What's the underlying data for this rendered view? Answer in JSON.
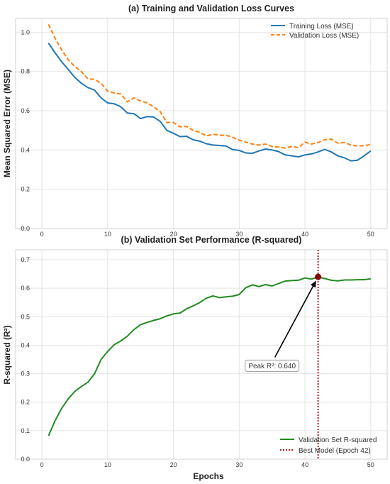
{
  "chart_data": [
    {
      "type": "line",
      "title": "(a) Training and Validation Loss Curves",
      "xlabel": "",
      "ylabel": "Mean Squared Error (MSE)",
      "xlim": [
        -4,
        52.5
      ],
      "ylim": [
        0,
        1.07
      ],
      "xticks": [
        0,
        10,
        20,
        30,
        40,
        50
      ],
      "yticks": [
        0.0,
        0.2,
        0.4,
        0.6,
        0.8,
        1.0
      ],
      "ytick_labels": [
        "0.0",
        "0.2",
        "0.4",
        "0.6",
        "0.8",
        "1.0"
      ],
      "grid": true,
      "legend_position": "top-right",
      "x": [
        1,
        2,
        3,
        4,
        5,
        6,
        7,
        8,
        9,
        10,
        11,
        12,
        13,
        14,
        15,
        16,
        17,
        18,
        19,
        20,
        21,
        22,
        23,
        24,
        25,
        26,
        27,
        28,
        29,
        30,
        31,
        32,
        33,
        34,
        35,
        36,
        37,
        38,
        39,
        40,
        41,
        42,
        43,
        44,
        45,
        46,
        47,
        48,
        49,
        50
      ],
      "series": [
        {
          "name": "Training Loss (MSE)",
          "color": "#1f77b4",
          "style": "solid",
          "values": [
            0.945,
            0.895,
            0.85,
            0.81,
            0.77,
            0.74,
            0.718,
            0.705,
            0.665,
            0.64,
            0.635,
            0.62,
            0.588,
            0.585,
            0.56,
            0.57,
            0.568,
            0.545,
            0.5,
            0.485,
            0.468,
            0.47,
            0.452,
            0.445,
            0.432,
            0.425,
            0.423,
            0.42,
            0.402,
            0.398,
            0.385,
            0.383,
            0.395,
            0.405,
            0.4,
            0.392,
            0.375,
            0.37,
            0.365,
            0.375,
            0.38,
            0.39,
            0.403,
            0.39,
            0.37,
            0.36,
            0.345,
            0.348,
            0.37,
            0.395
          ]
        },
        {
          "name": "Validation Loss (MSE)",
          "color": "#ff7f0e",
          "style": "dashed",
          "values": [
            1.04,
            0.97,
            0.91,
            0.86,
            0.825,
            0.8,
            0.762,
            0.76,
            0.74,
            0.7,
            0.69,
            0.685,
            0.645,
            0.665,
            0.65,
            0.64,
            0.62,
            0.595,
            0.54,
            0.54,
            0.518,
            0.52,
            0.5,
            0.49,
            0.472,
            0.48,
            0.475,
            0.475,
            0.465,
            0.45,
            0.44,
            0.43,
            0.425,
            0.43,
            0.418,
            0.415,
            0.41,
            0.418,
            0.412,
            0.44,
            0.43,
            0.438,
            0.452,
            0.455,
            0.435,
            0.438,
            0.425,
            0.42,
            0.422,
            0.428
          ]
        }
      ]
    },
    {
      "type": "line",
      "title": "(b) Validation Set Performance (R-squared)",
      "xlabel": "Epochs",
      "ylabel": "R-squared (R²)",
      "xlim": [
        -4,
        52.5
      ],
      "ylim": [
        0,
        0.735
      ],
      "xticks": [
        0,
        10,
        20,
        30,
        40,
        50
      ],
      "yticks": [
        0.0,
        0.1,
        0.2,
        0.3,
        0.4,
        0.5,
        0.6,
        0.7
      ],
      "ytick_labels": [
        "0.0",
        "0.1",
        "0.2",
        "0.3",
        "0.4",
        "0.5",
        "0.6",
        "0.7"
      ],
      "grid": true,
      "legend_position": "bottom-right",
      "x": [
        1,
        2,
        3,
        4,
        5,
        6,
        7,
        8,
        9,
        10,
        11,
        12,
        13,
        14,
        15,
        16,
        17,
        18,
        19,
        20,
        21,
        22,
        23,
        24,
        25,
        26,
        27,
        28,
        29,
        30,
        31,
        32,
        33,
        34,
        35,
        36,
        37,
        38,
        39,
        40,
        41,
        42,
        43,
        44,
        45,
        46,
        47,
        48,
        49,
        50
      ],
      "series": [
        {
          "name": "Validation Set R-squared",
          "color": "#228b22",
          "style": "solid",
          "values": [
            0.082,
            0.135,
            0.178,
            0.212,
            0.238,
            0.255,
            0.27,
            0.3,
            0.35,
            0.378,
            0.402,
            0.415,
            0.432,
            0.455,
            0.472,
            0.48,
            0.487,
            0.493,
            0.503,
            0.51,
            0.513,
            0.528,
            0.538,
            0.55,
            0.565,
            0.573,
            0.567,
            0.57,
            0.572,
            0.578,
            0.602,
            0.612,
            0.606,
            0.613,
            0.608,
            0.617,
            0.625,
            0.627,
            0.628,
            0.636,
            0.632,
            0.64,
            0.634,
            0.628,
            0.626,
            0.629,
            0.629,
            0.63,
            0.63,
            0.633
          ]
        }
      ],
      "vline": {
        "name": "Best Model (Epoch 42)",
        "x": 42,
        "color": "#b22222",
        "style": "dotted"
      },
      "highlight_point": {
        "x": 42,
        "y": 0.64,
        "color": "#8b0000"
      },
      "annotation": {
        "text": "Peak R²: 0.640",
        "text_x": 35,
        "text_y": 0.328,
        "target_x": 42,
        "target_y": 0.64
      }
    }
  ]
}
